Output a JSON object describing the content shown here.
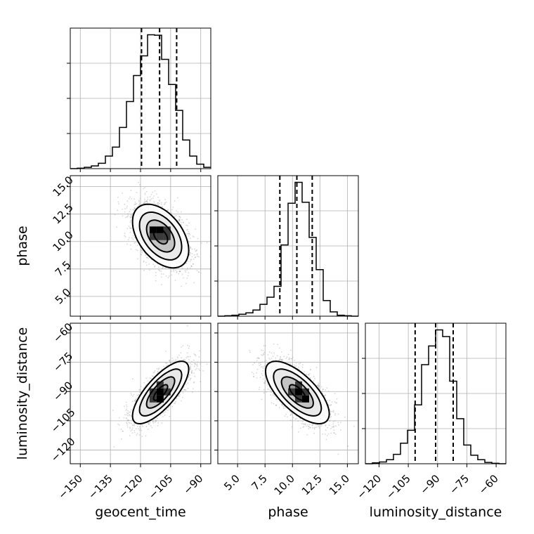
{
  "chart_data": {
    "type": "corner",
    "parameters": [
      "geocent_time",
      "phase",
      "luminosity_distance"
    ],
    "axis_labels": {
      "x": [
        "geocent_time",
        "phase",
        "luminosity_distance"
      ],
      "y": [
        "",
        "phase",
        "luminosity_distance"
      ]
    },
    "ranges": {
      "geocent_time": [
        -155,
        -85
      ],
      "phase": [
        3.2,
        16.0
      ],
      "luminosity_distance": [
        -127,
        -55
      ]
    },
    "ticks": {
      "geocent_time": [
        -150,
        -135,
        -120,
        -105,
        -90
      ],
      "phase": [
        5.0,
        7.5,
        10.0,
        12.5,
        15.0
      ],
      "luminosity_distance": [
        -120,
        -105,
        -90,
        -75,
        -60
      ]
    },
    "tick_labels": {
      "geocent_time": [
        "−150",
        "−135",
        "−120",
        "−105",
        "−90"
      ],
      "phase": [
        "5.0",
        "7.5",
        "10.0",
        "12.5",
        "15.0"
      ],
      "luminosity_distance": [
        "−120",
        "−105",
        "−90",
        "−75",
        "−60"
      ]
    },
    "grid": true,
    "histograms": [
      {
        "parameter": "geocent_time",
        "bin_edges": [
          -155,
          -151.5,
          -148,
          -144.5,
          -141,
          -137.5,
          -134,
          -130.5,
          -127,
          -123.5,
          -120,
          -116.5,
          -113,
          -109.5,
          -106,
          -102.5,
          -99,
          -95.5,
          -92,
          -88.5,
          -85
        ],
        "counts": [
          0,
          1,
          3,
          6,
          12,
          28,
          48,
          92,
          150,
          208,
          252,
          299,
          298,
          244,
          188,
          130,
          64,
          28,
          10,
          3
        ],
        "quantiles": [
          -119.5,
          -110.5,
          -102.0
        ]
      },
      {
        "parameter": "phase",
        "bin_edges": [
          3.2,
          3.84,
          4.48,
          5.12,
          5.76,
          6.4,
          7.04,
          7.68,
          8.32,
          8.96,
          9.6,
          10.24,
          10.88,
          11.52,
          12.16,
          12.8,
          13.44,
          14.08,
          14.72,
          15.36,
          16.0
        ],
        "counts": [
          0,
          1,
          2,
          4,
          7,
          13,
          25,
          40,
          63,
          150,
          238,
          282,
          240,
          166,
          98,
          33,
          9,
          2,
          1,
          0
        ],
        "quantiles": [
          8.85,
          10.4,
          11.8
        ]
      },
      {
        "parameter": "luminosity_distance",
        "bin_edges": [
          -127,
          -123.4,
          -119.8,
          -116.2,
          -112.6,
          -109,
          -105.4,
          -101.8,
          -98.2,
          -94.6,
          -91,
          -87.4,
          -83.8,
          -80.2,
          -76.6,
          -73,
          -69.4,
          -65.8,
          -62.2,
          -58.6,
          -55
        ],
        "counts": [
          0,
          2,
          4,
          9,
          21,
          46,
          75,
          132,
          222,
          264,
          300,
          285,
          185,
          101,
          42,
          19,
          9,
          3,
          1,
          0
        ],
        "quantiles": [
          -101.5,
          -91.0,
          -82.0
        ]
      }
    ],
    "pair_plots": [
      {
        "x": "geocent_time",
        "y": "phase",
        "center": [
          -110.0,
          10.5
        ],
        "sigma": [
          7.0,
          1.45
        ],
        "correlation": -0.45,
        "peak_cells": [
          [
            -113.75,
            11.05
          ],
          [
            -110.25,
            11.05
          ],
          [
            -110.25,
            10.45
          ],
          [
            -106.75,
            10.45
          ],
          [
            -113.75,
            10.45
          ],
          [
            -106.75,
            11.05
          ]
        ]
      },
      {
        "x": "geocent_time",
        "y": "luminosity_distance",
        "center": [
          -110.0,
          -90.5
        ],
        "sigma": [
          7.0,
          8.0
        ],
        "correlation": 0.75,
        "peak_cells": [
          [
            -110.25,
            -90.2
          ],
          [
            -110.25,
            -93.8
          ],
          [
            -113.75,
            -93.8
          ],
          [
            -106.75,
            -90.2
          ],
          [
            -110.25,
            -86.6
          ],
          [
            -113.75,
            -90.2
          ]
        ]
      },
      {
        "x": "phase",
        "y": "luminosity_distance",
        "center": [
          10.45,
          -90.5
        ],
        "sigma": [
          1.45,
          8.0
        ],
        "correlation": -0.68,
        "peak_cells": [
          [
            10.56,
            -90.2
          ],
          [
            11.2,
            -93.8
          ],
          [
            9.92,
            -90.2
          ],
          [
            11.2,
            -90.2
          ],
          [
            10.56,
            -86.6
          ],
          [
            10.56,
            -93.8
          ]
        ]
      }
    ],
    "contour_levels_sigma": [
      0.5,
      1.0,
      1.5,
      2.0
    ]
  }
}
